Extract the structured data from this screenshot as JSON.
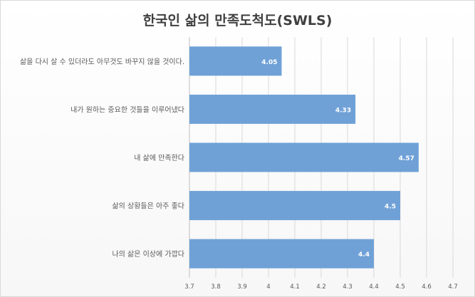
{
  "chart_data": {
    "type": "bar",
    "orientation": "horizontal",
    "title": "한국인 삶의 만족도척도(SWLS)",
    "categories": [
      "삶을 다시 살 수 있더라도 아무것도 바꾸지 않을 것이다.",
      "내가 원하는 중요한 것들을 이루어냈다",
      "내 삶에 만족한다",
      "삶의 상황들은 아주 좋다",
      "나의 삶은 이상에 가깝다"
    ],
    "values": [
      4.05,
      4.33,
      4.57,
      4.5,
      4.4
    ],
    "value_labels": [
      "4.05",
      "4.33",
      "4.57",
      "4.5",
      "4.4"
    ],
    "xlim": [
      3.7,
      4.7
    ],
    "xticks": [
      "3.7",
      "3.8",
      "3.9",
      "4",
      "4.1",
      "4.2",
      "4.3",
      "4.4",
      "4.5",
      "4.6",
      "4.7"
    ],
    "grid": true,
    "legend": "none",
    "bar_color": "#6fa1d7"
  }
}
